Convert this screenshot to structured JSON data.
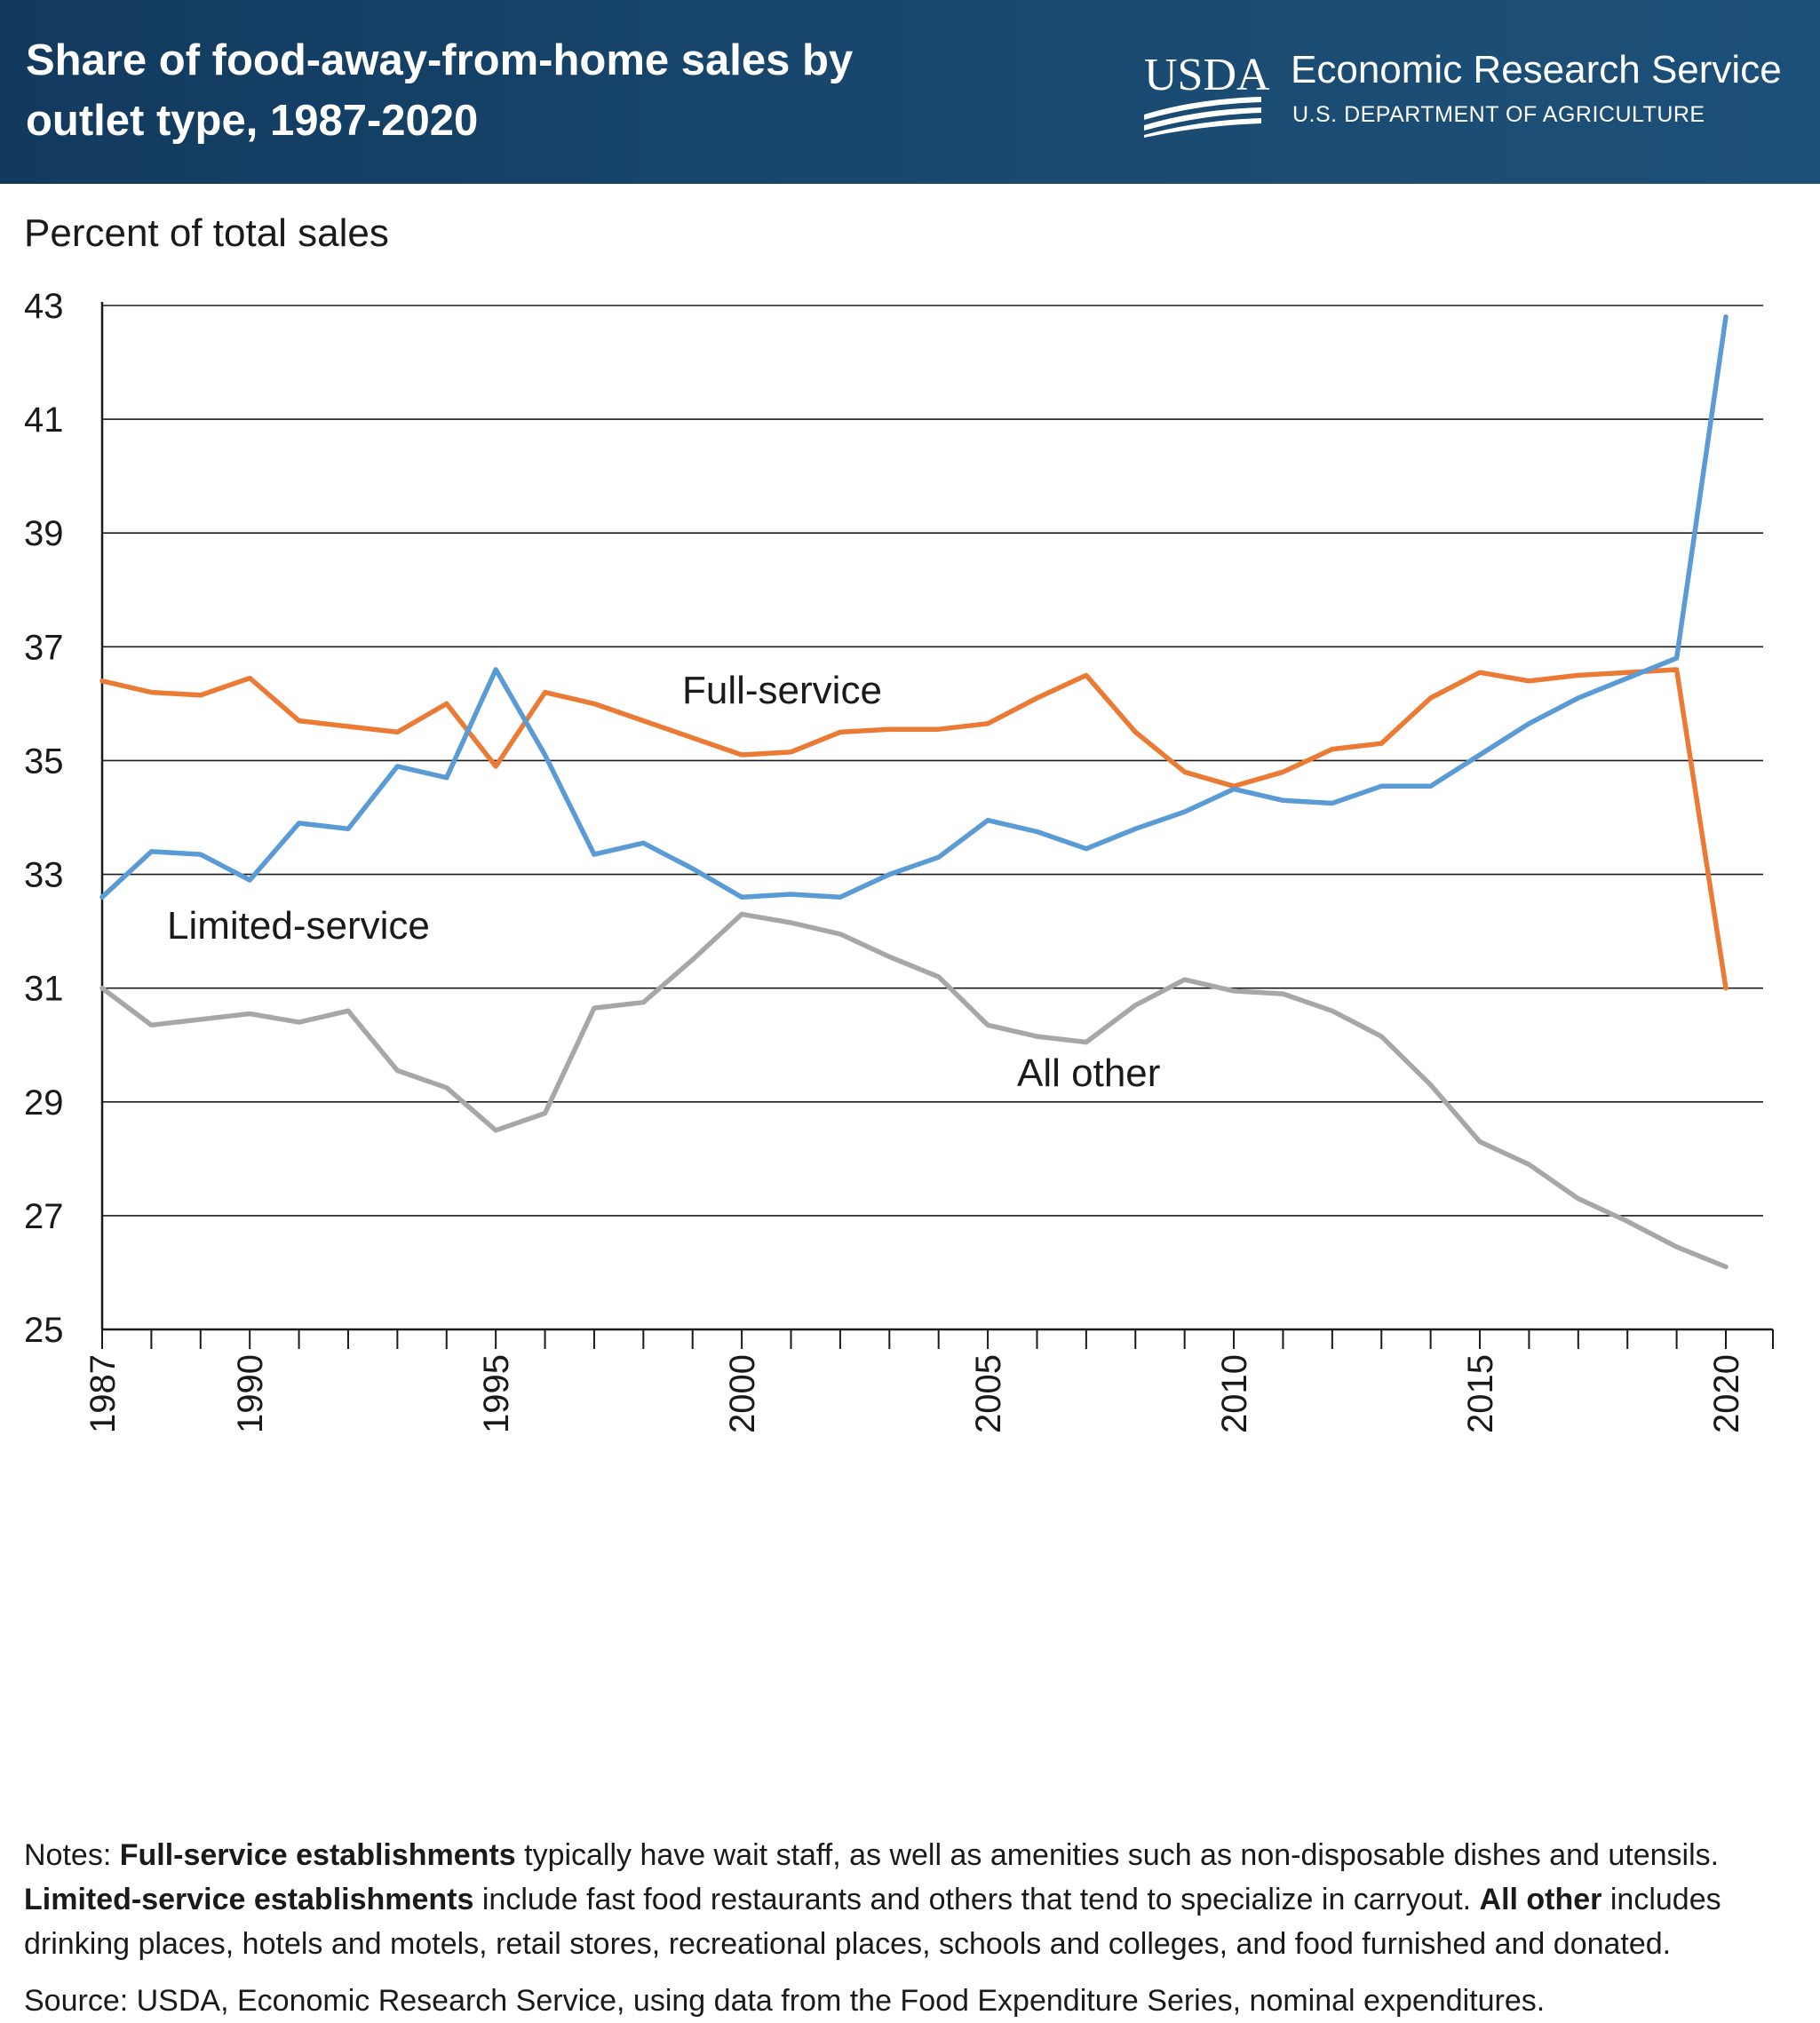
{
  "header": {
    "title": "Share of food-away-from-home sales by outlet type, 1987-2020",
    "logo_text": "USDA",
    "org_name": "Economic Research Service",
    "dept_name": "U.S. DEPARTMENT OF AGRICULTURE",
    "background": "#173f64"
  },
  "chart_data": {
    "type": "line",
    "title": "Share of food-away-from-home sales by outlet type, 1987-2020",
    "ylabel": "Percent of total sales",
    "xlabel": "",
    "x": [
      1987,
      1988,
      1989,
      1990,
      1991,
      1992,
      1993,
      1994,
      1995,
      1996,
      1997,
      1998,
      1999,
      2000,
      2001,
      2002,
      2003,
      2004,
      2005,
      2006,
      2007,
      2008,
      2009,
      2010,
      2011,
      2012,
      2013,
      2014,
      2015,
      2016,
      2017,
      2018,
      2019,
      2020
    ],
    "ylim": [
      25,
      43
    ],
    "yticks": [
      "25",
      "27",
      "29",
      "31",
      "33",
      "35",
      "37",
      "39",
      "41",
      "43"
    ],
    "xtick_labels": [
      "1987",
      "1990",
      "1995",
      "2000",
      "2005",
      "2010",
      "2015",
      "2020"
    ],
    "grid": "horizontal",
    "legend": "inline labels",
    "series": [
      {
        "name": "Full-service",
        "color": "#ea7a34",
        "values": [
          36.4,
          36.2,
          36.15,
          36.45,
          35.7,
          35.6,
          35.5,
          36.0,
          34.9,
          36.2,
          36.0,
          35.7,
          35.4,
          35.1,
          35.15,
          35.5,
          35.55,
          35.55,
          35.65,
          36.1,
          36.5,
          35.5,
          34.8,
          34.55,
          34.8,
          35.2,
          35.3,
          36.1,
          36.55,
          36.4,
          36.5,
          36.55,
          36.6,
          31.0
        ]
      },
      {
        "name": "Limited-service",
        "color": "#5b9bd5",
        "values": [
          32.6,
          33.4,
          33.35,
          32.9,
          33.9,
          33.8,
          34.9,
          34.7,
          36.6,
          35.1,
          33.35,
          33.55,
          33.1,
          32.6,
          32.65,
          32.6,
          33.0,
          33.3,
          33.95,
          33.75,
          33.45,
          33.8,
          34.1,
          34.5,
          34.3,
          34.25,
          34.55,
          34.55,
          35.1,
          35.65,
          36.1,
          36.45,
          36.8,
          42.8
        ]
      },
      {
        "name": "All other",
        "color": "#a7a7a7",
        "values": [
          31.0,
          30.35,
          30.45,
          30.55,
          30.4,
          30.6,
          29.55,
          29.25,
          28.5,
          28.8,
          30.65,
          30.75,
          31.5,
          32.3,
          32.15,
          31.95,
          31.55,
          31.2,
          30.35,
          30.15,
          30.05,
          30.7,
          31.15,
          30.95,
          30.9,
          30.6,
          30.15,
          29.3,
          28.3,
          27.9,
          27.3,
          26.9,
          26.45,
          26.1
        ]
      }
    ],
    "annotations": [
      {
        "text": "Full-service",
        "series": "Full-service"
      },
      {
        "text": "Limited-service",
        "series": "Limited-service"
      },
      {
        "text": "All other",
        "series": "All other"
      }
    ]
  },
  "notes": {
    "prefix": "Notes: ",
    "full_bold": "Full-service establishments",
    "full_text": " typically have wait staff, as well as amenities such as non-disposable dishes and utensils. ",
    "limited_bold": "Limited-service establishments",
    "limited_text": " include fast food restaurants and others that tend to specialize in carryout. ",
    "other_bold": "All other",
    "other_text": " includes drinking places, hotels and motels, retail stores, recreational places, schools and colleges, and food furnished and donated.",
    "source": "Source: USDA, Economic Research Service, using data from the Food Expenditure Series, nominal expenditures."
  }
}
